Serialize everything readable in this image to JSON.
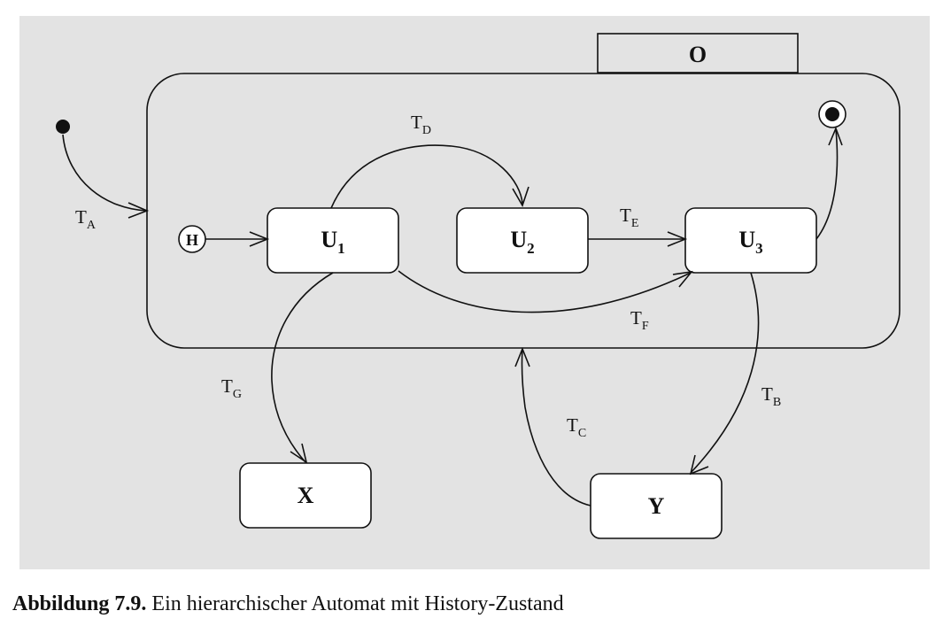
{
  "diagram": {
    "superstate": {
      "name": "O"
    },
    "states": [
      {
        "id": "U1",
        "base": "U",
        "sub": "1"
      },
      {
        "id": "U2",
        "base": "U",
        "sub": "2"
      },
      {
        "id": "U3",
        "base": "U",
        "sub": "3"
      },
      {
        "id": "X",
        "base": "X",
        "sub": ""
      },
      {
        "id": "Y",
        "base": "Y",
        "sub": ""
      }
    ],
    "history": {
      "label": "H"
    },
    "transitions": [
      {
        "id": "TA",
        "base": "T",
        "sub": "A"
      },
      {
        "id": "TB",
        "base": "T",
        "sub": "B"
      },
      {
        "id": "TC",
        "base": "T",
        "sub": "C"
      },
      {
        "id": "TD",
        "base": "T",
        "sub": "D"
      },
      {
        "id": "TE",
        "base": "T",
        "sub": "E"
      },
      {
        "id": "TF",
        "base": "T",
        "sub": "F"
      },
      {
        "id": "TG",
        "base": "T",
        "sub": "G"
      }
    ],
    "colors": {
      "background": "#e3e3e3",
      "stroke": "#111111",
      "state_fill": "#ffffff"
    }
  },
  "caption": {
    "label": "Abbildung 7.9.",
    "text": "Ein hierarchischer Automat mit History-Zustand"
  }
}
